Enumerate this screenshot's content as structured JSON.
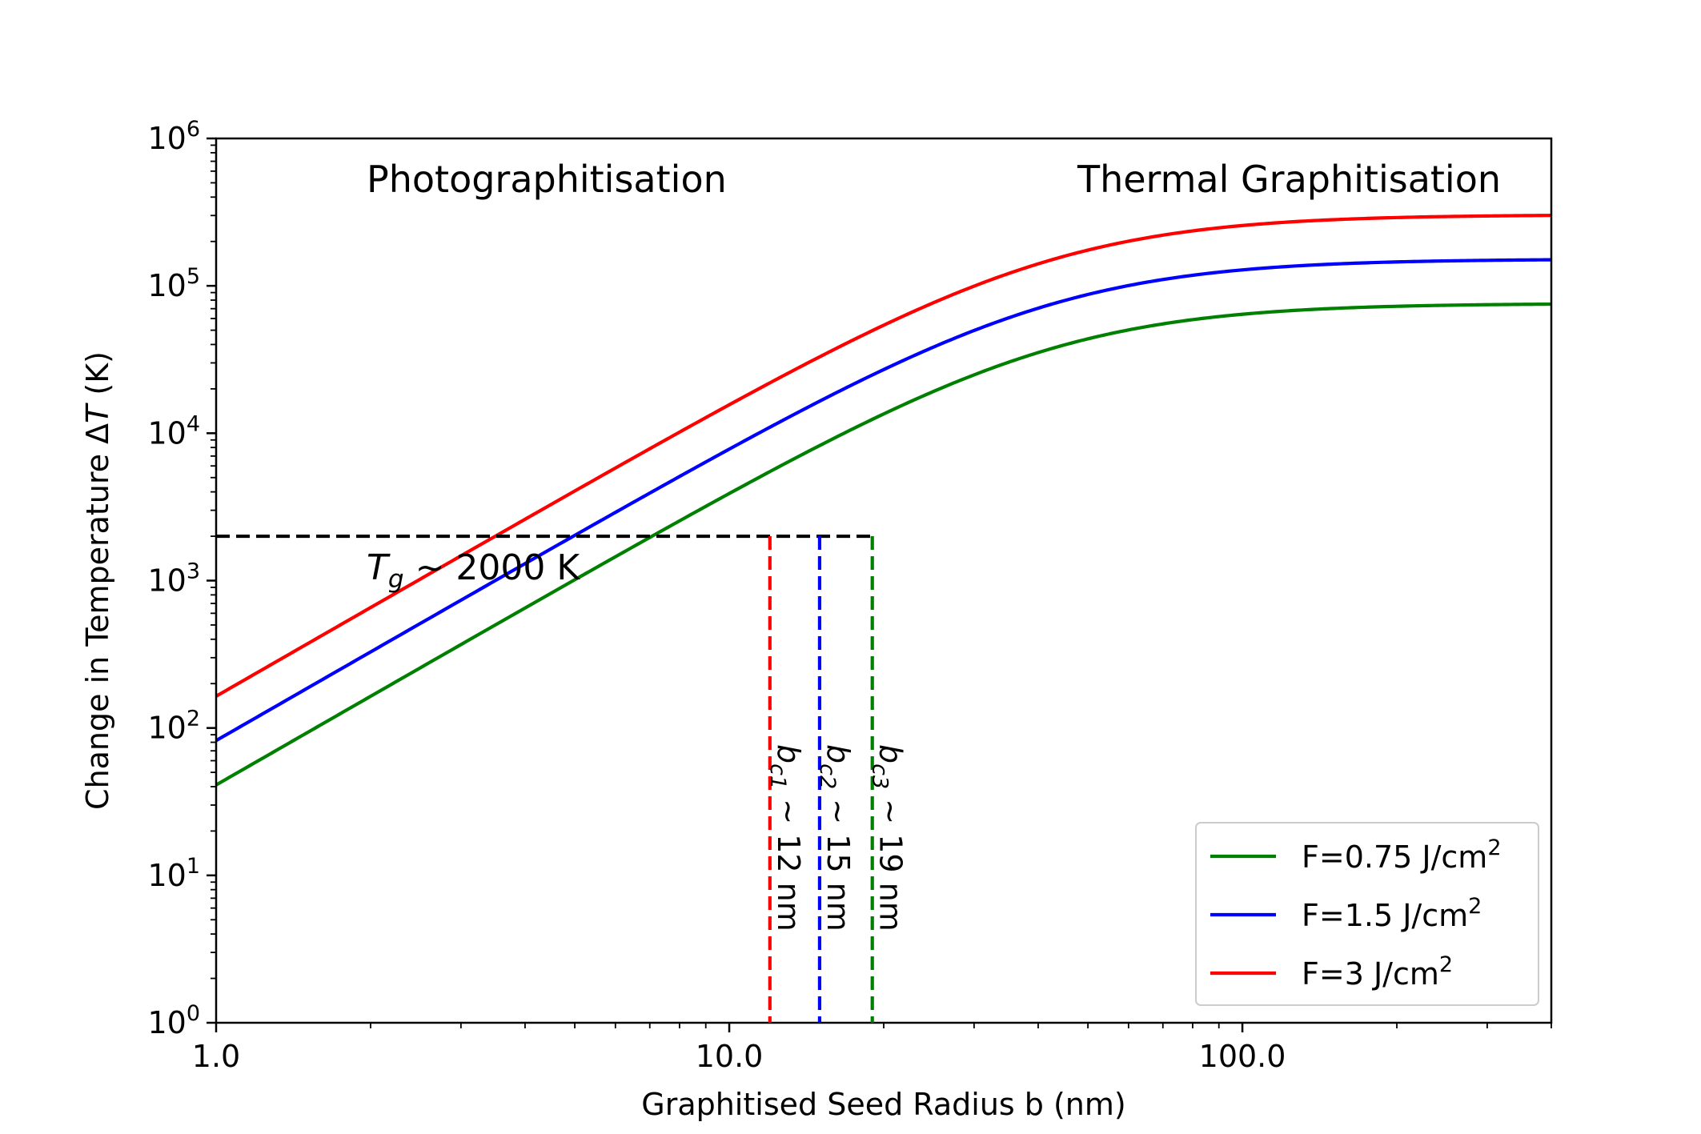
{
  "chart_data": {
    "type": "line",
    "xlabel": "Graphitised Seed Radius b (nm)",
    "ylabel_prefix": "Change in Temperature Δ",
    "ylabel_var": "T",
    "ylabel_suffix": " (K)",
    "x_scale": "log",
    "y_scale": "log",
    "xlim": [
      1,
      400
    ],
    "ylim": [
      1,
      1000000
    ],
    "x_ticks": [
      {
        "value": 1,
        "label": "1.0"
      },
      {
        "value": 10,
        "label": "10.0"
      },
      {
        "value": 100,
        "label": "100.0"
      }
    ],
    "y_ticks": [
      {
        "value": 1,
        "base": "10",
        "exp": "0"
      },
      {
        "value": 10,
        "base": "10",
        "exp": "1"
      },
      {
        "value": 100,
        "base": "10",
        "exp": "2"
      },
      {
        "value": 1000,
        "base": "10",
        "exp": "3"
      },
      {
        "value": 10000,
        "base": "10",
        "exp": "4"
      },
      {
        "value": 100000,
        "base": "10",
        "exp": "5"
      },
      {
        "value": 1000000,
        "base": "10",
        "exp": "6"
      }
    ],
    "regions": {
      "left": "Photographitisation",
      "right": "Thermal Graphitisation"
    },
    "threshold": {
      "value": 2000,
      "label_var": "T",
      "label_sub": "g",
      "label_rest": " ~ 2000 K"
    },
    "series": [
      {
        "name_prefix": "F=0.75 J/cm",
        "name_sup": "2",
        "color": "#008000",
        "Tmax": 76000,
        "critical_b": 19,
        "crit_var": "b",
        "crit_sub": "c3",
        "crit_rest": " ~ 19 nm"
      },
      {
        "name_prefix": "F=1.5 J/cm",
        "name_sup": "2",
        "color": "#0000ff",
        "Tmax": 152000,
        "critical_b": 15,
        "crit_var": "b",
        "crit_sub": "c2",
        "crit_rest": " ~ 15 nm"
      },
      {
        "name_prefix": "F=3 J/cm",
        "name_sup": "2",
        "color": "#ff0000",
        "Tmax": 304000,
        "critical_b": 12,
        "crit_var": "b",
        "crit_sub": "c1",
        "crit_rest": " ~ 12 nm"
      }
    ],
    "curve_model": "T = Tmax * b^2 / (b^2 + k^2)",
    "curve_k": 43,
    "legend_position": "lower right",
    "grid": false
  }
}
